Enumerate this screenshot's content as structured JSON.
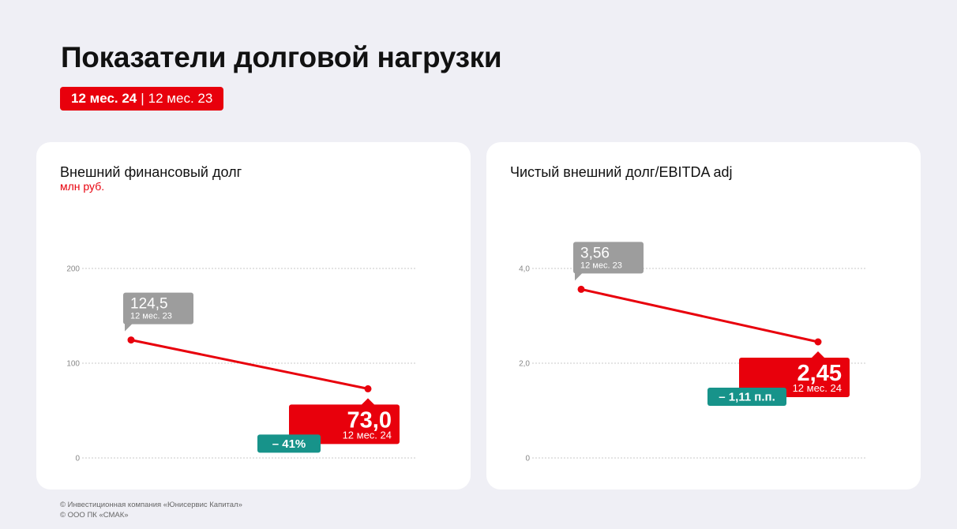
{
  "title": "Показатели долговой нагрузки",
  "period_badge": {
    "current": "12 мес. 24",
    "separator": "|",
    "previous": "12 мес. 23"
  },
  "colors": {
    "accent": "#e8000c",
    "previous": "#9d9d9d",
    "change": "#17938a",
    "line": "#e8000c"
  },
  "chart_data": [
    {
      "type": "line",
      "title": "Внешний финансовый долг",
      "unit": "млн руб.",
      "x": [
        "12 мес. 23",
        "12 мес. 24"
      ],
      "values": [
        124.5,
        73.0
      ],
      "ylim": [
        0,
        200
      ],
      "yticks": [
        0,
        100,
        200
      ],
      "ytick_labels": [
        "0",
        "100",
        "200"
      ],
      "grid": true,
      "labels": {
        "previous": {
          "value": "124,5",
          "period": "12 мес. 23"
        },
        "current": {
          "value": "73,0",
          "period": "12 мес. 24"
        },
        "change": "– 41%"
      }
    },
    {
      "type": "line",
      "title": "Чистый внешний долг/EBITDA adj",
      "unit": "",
      "x": [
        "12 мес. 23",
        "12 мес. 24"
      ],
      "values": [
        3.56,
        2.45
      ],
      "ylim": [
        0,
        4
      ],
      "yticks": [
        0,
        2,
        4
      ],
      "ytick_labels": [
        "0",
        "2,0",
        "4,0"
      ],
      "grid": true,
      "labels": {
        "previous": {
          "value": "3,56",
          "period": "12 мес. 23"
        },
        "current": {
          "value": "2,45",
          "period": "12 мес. 24"
        },
        "change": "– 1,11 п.п."
      }
    }
  ],
  "footer": [
    "© Инвестиционная компания «Юнисервис Капитал»",
    "© ООО ПК «СМАК»"
  ]
}
